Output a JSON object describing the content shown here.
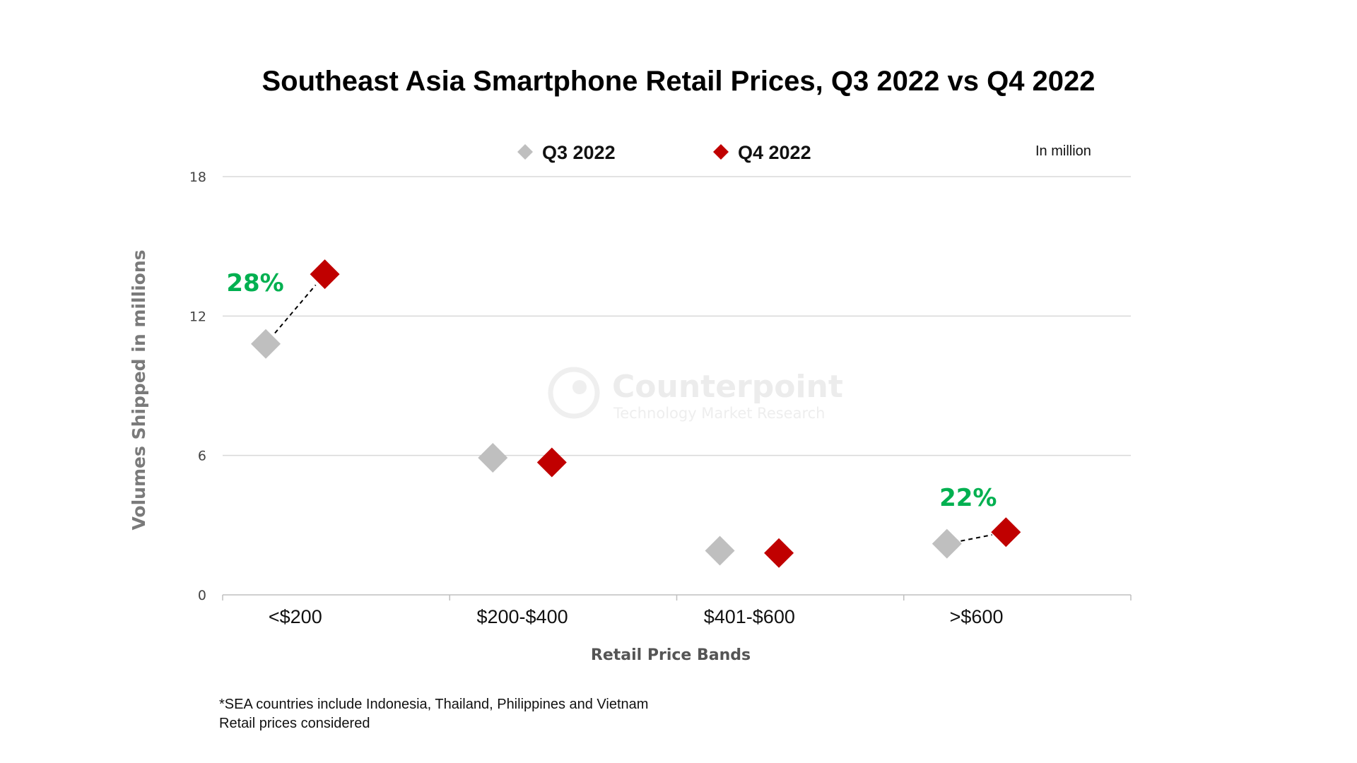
{
  "chart_data": {
    "type": "scatter",
    "title": "Southeast Asia Smartphone Retail Prices, Q3 2022 vs Q4 2022",
    "unit_note": "In million",
    "xlabel": "Retail Price Bands",
    "ylabel": "Volumes Shipped in millions",
    "categories": [
      "<$200",
      "$200-$400",
      "$401-$600",
      ">$600"
    ],
    "ylim": [
      0,
      18
    ],
    "yticks": [
      "0",
      "6",
      "12",
      "18"
    ],
    "grid": true,
    "legend_position": "top",
    "series": [
      {
        "name": "Q3 2022",
        "color": "#bfbfbf",
        "marker": "diamond",
        "values": [
          10.8,
          5.9,
          1.9,
          2.2
        ]
      },
      {
        "name": "Q4 2022",
        "color": "#c00000",
        "marker": "diamond",
        "values": [
          13.8,
          5.7,
          1.8,
          2.7
        ]
      }
    ],
    "annotations": [
      {
        "text": "28%",
        "category": "<$200",
        "color": "#00b050"
      },
      {
        "text": "22%",
        "category": ">$600",
        "color": "#00b050"
      }
    ],
    "connectors": [
      "<$200",
      ">$600"
    ]
  },
  "watermark": {
    "title": "Counterpoint",
    "subtitle": "Technology Market Research"
  },
  "footnotes": [
    "*SEA countries include Indonesia, Thailand, Philippines and Vietnam",
    "Retail prices considered"
  ]
}
